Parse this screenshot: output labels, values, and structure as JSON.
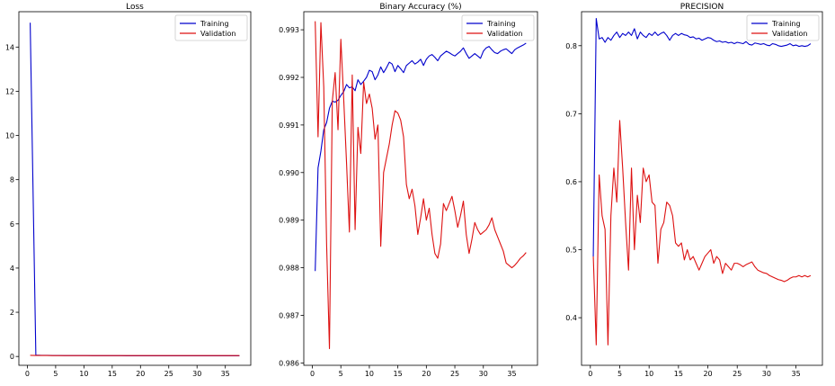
{
  "chart_data": [
    {
      "type": "line",
      "title": "Loss",
      "xlim": [
        -1.5,
        39.5
      ],
      "ylim": [
        -0.4,
        15.6
      ],
      "xticks": [
        0,
        5,
        10,
        15,
        20,
        25,
        30,
        35
      ],
      "yticks": [
        0,
        2,
        4,
        6,
        8,
        10,
        12,
        14
      ],
      "ytick_labels": [
        "0",
        "2",
        "4",
        "6",
        "8",
        "10",
        "12",
        "14"
      ],
      "legend_position": "top-right",
      "series": [
        {
          "name": "Training",
          "color": "#0000cc",
          "x": [
            0.5,
            1.5,
            2.5,
            3.5,
            4.5,
            5.5,
            6.5,
            7.5,
            8.5,
            9.5,
            10.5,
            11.5,
            12.5,
            13.5,
            14.5,
            15.5,
            16.5,
            17.5,
            18.5,
            19.5,
            20.5,
            21.5,
            22.5,
            23.5,
            24.5,
            25.5,
            26.5,
            27.5,
            28.5,
            29.5,
            30.5,
            31.5,
            32.5,
            33.5,
            34.5,
            35.5,
            36.5,
            37.5
          ],
          "y": [
            15.1,
            0.06,
            0.05,
            0.05,
            0.045,
            0.045,
            0.04,
            0.04,
            0.04,
            0.04,
            0.04,
            0.035,
            0.035,
            0.035,
            0.035,
            0.035,
            0.035,
            0.03,
            0.03,
            0.03,
            0.03,
            0.03,
            0.03,
            0.03,
            0.03,
            0.03,
            0.03,
            0.03,
            0.03,
            0.03,
            0.03,
            0.03,
            0.03,
            0.03,
            0.03,
            0.03,
            0.03,
            0.03
          ]
        },
        {
          "name": "Validation",
          "color": "#dd1111",
          "x": [
            0.5,
            1.5,
            2.5,
            3.5,
            4.5,
            5.5,
            6.5,
            7.5,
            8.5,
            9.5,
            10.5,
            11.5,
            12.5,
            13.5,
            14.5,
            15.5,
            16.5,
            17.5,
            18.5,
            19.5,
            20.5,
            21.5,
            22.5,
            23.5,
            24.5,
            25.5,
            26.5,
            27.5,
            28.5,
            29.5,
            30.5,
            31.5,
            32.5,
            33.5,
            34.5,
            35.5,
            36.5,
            37.5
          ],
          "y": [
            0.05,
            0.045,
            0.045,
            0.045,
            0.04,
            0.04,
            0.04,
            0.04,
            0.04,
            0.04,
            0.04,
            0.04,
            0.04,
            0.04,
            0.04,
            0.04,
            0.04,
            0.04,
            0.04,
            0.04,
            0.04,
            0.04,
            0.04,
            0.04,
            0.04,
            0.04,
            0.04,
            0.04,
            0.04,
            0.04,
            0.04,
            0.04,
            0.04,
            0.04,
            0.04,
            0.04,
            0.04,
            0.04
          ]
        }
      ]
    },
    {
      "type": "line",
      "title": "Binary Accuracy (%)",
      "xlim": [
        -1.5,
        39.5
      ],
      "ylim": [
        0.98595,
        0.99338
      ],
      "xticks": [
        0,
        5,
        10,
        15,
        20,
        25,
        30,
        35
      ],
      "yticks": [
        0.986,
        0.987,
        0.988,
        0.989,
        0.99,
        0.991,
        0.992,
        0.993
      ],
      "ytick_labels": [
        "0.986",
        "0.987",
        "0.988",
        "0.989",
        "0.990",
        "0.991",
        "0.992",
        "0.993"
      ],
      "legend_position": "top-right",
      "series": [
        {
          "name": "Training",
          "color": "#0000cc",
          "x": [
            0.5,
            1.0,
            1.5,
            2.0,
            2.5,
            3.0,
            3.5,
            4.0,
            4.5,
            5.0,
            5.5,
            6.0,
            6.5,
            7.0,
            7.5,
            8.0,
            8.5,
            9.0,
            9.5,
            10.0,
            10.5,
            11.0,
            11.5,
            12.0,
            12.5,
            13.0,
            13.5,
            14.0,
            14.5,
            15.0,
            15.5,
            16.0,
            16.5,
            17.0,
            17.5,
            18.0,
            18.5,
            19.0,
            19.5,
            20.0,
            20.5,
            21.0,
            21.5,
            22.0,
            22.5,
            23.0,
            23.5,
            24.0,
            24.5,
            25.0,
            25.5,
            26.0,
            26.5,
            27.0,
            27.5,
            28.0,
            28.5,
            29.0,
            29.5,
            30.0,
            30.5,
            31.0,
            31.5,
            32.0,
            32.5,
            33.0,
            33.5,
            34.0,
            34.5,
            35.0,
            35.5,
            36.0,
            36.5,
            37.0,
            37.5
          ],
          "y": [
            0.98793,
            0.9901,
            0.99045,
            0.9909,
            0.99105,
            0.99135,
            0.9915,
            0.99148,
            0.99152,
            0.99162,
            0.9917,
            0.99185,
            0.99178,
            0.9918,
            0.99172,
            0.99195,
            0.99185,
            0.99192,
            0.992,
            0.99215,
            0.99212,
            0.99195,
            0.99205,
            0.99222,
            0.9921,
            0.9922,
            0.99232,
            0.99228,
            0.99212,
            0.99225,
            0.99218,
            0.9921,
            0.99225,
            0.9923,
            0.99235,
            0.99228,
            0.99232,
            0.99238,
            0.99225,
            0.99238,
            0.99245,
            0.99248,
            0.99242,
            0.99235,
            0.99245,
            0.9925,
            0.99255,
            0.99252,
            0.99248,
            0.99245,
            0.9925,
            0.99255,
            0.99262,
            0.9925,
            0.9924,
            0.99245,
            0.9925,
            0.99245,
            0.9924,
            0.99255,
            0.99262,
            0.99265,
            0.99258,
            0.99252,
            0.9925,
            0.99255,
            0.99258,
            0.9926,
            0.99255,
            0.9925,
            0.99258,
            0.99262,
            0.99265,
            0.99268,
            0.99272
          ]
        },
        {
          "name": "Validation",
          "color": "#dd1111",
          "x": [
            0.5,
            1.0,
            1.5,
            2.0,
            2.5,
            3.0,
            3.5,
            4.0,
            4.5,
            5.0,
            5.5,
            6.0,
            6.5,
            7.0,
            7.5,
            8.0,
            8.5,
            9.0,
            9.5,
            10.0,
            10.5,
            11.0,
            11.5,
            12.0,
            12.5,
            13.0,
            13.5,
            14.0,
            14.5,
            15.0,
            15.5,
            16.0,
            16.5,
            17.0,
            17.5,
            18.0,
            18.5,
            19.0,
            19.5,
            20.0,
            20.5,
            21.0,
            21.5,
            22.0,
            22.5,
            23.0,
            23.5,
            24.0,
            24.5,
            25.0,
            25.5,
            26.0,
            26.5,
            27.0,
            27.5,
            28.0,
            28.5,
            29.0,
            29.5,
            30.0,
            30.5,
            31.0,
            31.5,
            32.0,
            32.5,
            33.0,
            33.5,
            34.0,
            34.5,
            35.0,
            35.5,
            36.0,
            36.5,
            37.0,
            37.5
          ],
          "y": [
            0.99318,
            0.99075,
            0.99315,
            0.9918,
            0.9885,
            0.9863,
            0.9915,
            0.9921,
            0.9909,
            0.9928,
            0.99155,
            0.9902,
            0.98875,
            0.99205,
            0.9888,
            0.99095,
            0.9904,
            0.9919,
            0.99145,
            0.99165,
            0.99135,
            0.9907,
            0.991,
            0.98845,
            0.99,
            0.9903,
            0.9906,
            0.991,
            0.9913,
            0.99125,
            0.9911,
            0.99075,
            0.98975,
            0.98945,
            0.98965,
            0.9893,
            0.9887,
            0.98905,
            0.98945,
            0.989,
            0.98925,
            0.9887,
            0.9883,
            0.9882,
            0.9885,
            0.98935,
            0.9892,
            0.98935,
            0.9895,
            0.9892,
            0.98885,
            0.9891,
            0.9894,
            0.9887,
            0.9883,
            0.9886,
            0.98895,
            0.9888,
            0.9887,
            0.98875,
            0.9888,
            0.9889,
            0.98905,
            0.9888,
            0.98865,
            0.9885,
            0.98835,
            0.9881,
            0.98805,
            0.988,
            0.98805,
            0.98812,
            0.9882,
            0.98825,
            0.98832
          ]
        }
      ]
    },
    {
      "type": "line",
      "title": "PRECISION",
      "xlim": [
        -1.5,
        39.5
      ],
      "ylim": [
        0.33,
        0.85
      ],
      "xticks": [
        0,
        5,
        10,
        15,
        20,
        25,
        30,
        35
      ],
      "yticks": [
        0.4,
        0.5,
        0.6,
        0.7,
        0.8
      ],
      "ytick_labels": [
        "0.4",
        "0.5",
        "0.6",
        "0.7",
        "0.8"
      ],
      "legend_position": "top-right",
      "series": [
        {
          "name": "Training",
          "color": "#0000cc",
          "x": [
            0.5,
            1.0,
            1.5,
            2.0,
            2.5,
            3.0,
            3.5,
            4.0,
            4.5,
            5.0,
            5.5,
            6.0,
            6.5,
            7.0,
            7.5,
            8.0,
            8.5,
            9.0,
            9.5,
            10.0,
            10.5,
            11.0,
            11.5,
            12.0,
            12.5,
            13.0,
            13.5,
            14.0,
            14.5,
            15.0,
            15.5,
            16.0,
            16.5,
            17.0,
            17.5,
            18.0,
            18.5,
            19.0,
            19.5,
            20.0,
            20.5,
            21.0,
            21.5,
            22.0,
            22.5,
            23.0,
            23.5,
            24.0,
            24.5,
            25.0,
            25.5,
            26.0,
            26.5,
            27.0,
            27.5,
            28.0,
            28.5,
            29.0,
            29.5,
            30.0,
            30.5,
            31.0,
            31.5,
            32.0,
            32.5,
            33.0,
            33.5,
            34.0,
            34.5,
            35.0,
            35.5,
            36.0,
            36.5,
            37.0,
            37.5
          ],
          "y": [
            0.49,
            0.84,
            0.81,
            0.812,
            0.805,
            0.812,
            0.808,
            0.815,
            0.82,
            0.812,
            0.818,
            0.815,
            0.82,
            0.815,
            0.825,
            0.81,
            0.82,
            0.815,
            0.812,
            0.818,
            0.815,
            0.82,
            0.815,
            0.818,
            0.82,
            0.815,
            0.808,
            0.815,
            0.818,
            0.815,
            0.818,
            0.816,
            0.815,
            0.812,
            0.813,
            0.81,
            0.811,
            0.808,
            0.81,
            0.812,
            0.811,
            0.808,
            0.806,
            0.807,
            0.805,
            0.806,
            0.804,
            0.805,
            0.803,
            0.805,
            0.804,
            0.803,
            0.806,
            0.802,
            0.801,
            0.804,
            0.803,
            0.802,
            0.803,
            0.801,
            0.8,
            0.803,
            0.802,
            0.8,
            0.799,
            0.8,
            0.801,
            0.803,
            0.8,
            0.801,
            0.799,
            0.8,
            0.799,
            0.8,
            0.803
          ]
        },
        {
          "name": "Validation",
          "color": "#dd1111",
          "x": [
            0.5,
            1.0,
            1.5,
            2.0,
            2.5,
            3.0,
            3.5,
            4.0,
            4.5,
            5.0,
            5.5,
            6.0,
            6.5,
            7.0,
            7.5,
            8.0,
            8.5,
            9.0,
            9.5,
            10.0,
            10.5,
            11.0,
            11.5,
            12.0,
            12.5,
            13.0,
            13.5,
            14.0,
            14.5,
            15.0,
            15.5,
            16.0,
            16.5,
            17.0,
            17.5,
            18.0,
            18.5,
            19.0,
            19.5,
            20.0,
            20.5,
            21.0,
            21.5,
            22.0,
            22.5,
            23.0,
            23.5,
            24.0,
            24.5,
            25.0,
            25.5,
            26.0,
            26.5,
            27.0,
            27.5,
            28.0,
            28.5,
            29.0,
            29.5,
            30.0,
            30.5,
            31.0,
            31.5,
            32.0,
            32.5,
            33.0,
            33.5,
            34.0,
            34.5,
            35.0,
            35.5,
            36.0,
            36.5,
            37.0,
            37.5
          ],
          "y": [
            0.49,
            0.36,
            0.61,
            0.55,
            0.53,
            0.36,
            0.55,
            0.62,
            0.57,
            0.69,
            0.62,
            0.54,
            0.47,
            0.62,
            0.5,
            0.58,
            0.54,
            0.62,
            0.6,
            0.61,
            0.57,
            0.565,
            0.48,
            0.53,
            0.54,
            0.57,
            0.565,
            0.55,
            0.51,
            0.505,
            0.51,
            0.485,
            0.5,
            0.485,
            0.49,
            0.48,
            0.47,
            0.48,
            0.49,
            0.495,
            0.5,
            0.48,
            0.49,
            0.485,
            0.465,
            0.48,
            0.475,
            0.47,
            0.48,
            0.48,
            0.478,
            0.475,
            0.478,
            0.48,
            0.482,
            0.475,
            0.47,
            0.468,
            0.466,
            0.465,
            0.462,
            0.46,
            0.458,
            0.456,
            0.455,
            0.453,
            0.455,
            0.458,
            0.46,
            0.46,
            0.462,
            0.46,
            0.462,
            0.46,
            0.462
          ]
        }
      ]
    }
  ]
}
